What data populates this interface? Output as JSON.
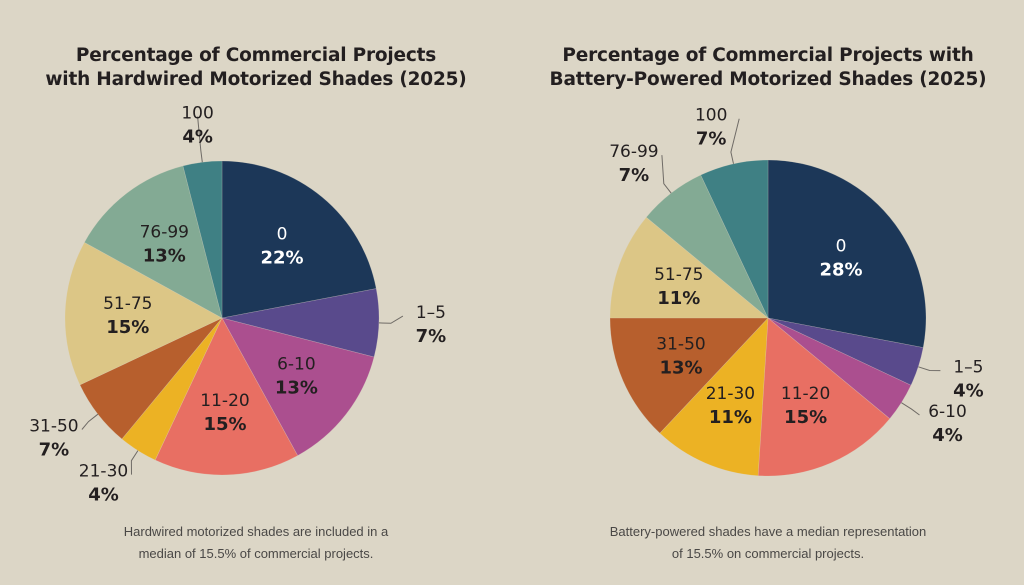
{
  "chart_data": [
    {
      "type": "pie",
      "title": "Percentage of Commercial Projects with Hardwired Motorized Shades (2025)",
      "title_lines": [
        "Percentage of Commercial Projects",
        "with Hardwired Motorized Shades (2025)"
      ],
      "note_lines": [
        "Hardwired motorized shades are included in a",
        "median of 15.5% of commercial projects."
      ],
      "start": "12 o'clock, clockwise",
      "slices": [
        {
          "label": "0",
          "value": 22,
          "display": "22%",
          "color": "#1c3758",
          "text_color": "#ffffff",
          "label_position": "inside"
        },
        {
          "label": "1–5",
          "value": 7,
          "display": "7%",
          "color": "#594a8c",
          "text_color": "#231f20",
          "label_position": "outside"
        },
        {
          "label": "6-10",
          "value": 13,
          "display": "13%",
          "color": "#ab4f8f",
          "text_color": "#231f20",
          "label_position": "inside"
        },
        {
          "label": "11-20",
          "value": 15,
          "display": "15%",
          "color": "#e86f63",
          "text_color": "#231f20",
          "label_position": "inside"
        },
        {
          "label": "21-30",
          "value": 4,
          "display": "4%",
          "color": "#ecb224",
          "text_color": "#231f20",
          "label_position": "outside"
        },
        {
          "label": "31-50",
          "value": 7,
          "display": "7%",
          "color": "#b75f2d",
          "text_color": "#231f20",
          "label_position": "outside"
        },
        {
          "label": "51-75",
          "value": 15,
          "display": "15%",
          "color": "#dcc686",
          "text_color": "#231f20",
          "label_position": "inside"
        },
        {
          "label": "76-99",
          "value": 13,
          "display": "13%",
          "color": "#83aa94",
          "text_color": "#231f20",
          "label_position": "inside"
        },
        {
          "label": "100",
          "value": 4,
          "display": "4%",
          "color": "#3f8084",
          "text_color": "#231f20",
          "label_position": "outside"
        }
      ]
    },
    {
      "type": "pie",
      "title": "Percentage of Commercial Projects with Battery-Powered Motorized Shades (2025)",
      "title_lines": [
        "Percentage of Commercial Projects with",
        "Battery-Powered Motorized Shades (2025)"
      ],
      "note_lines": [
        "Battery-powered shades have a median representation",
        "of 15.5% on commercial projects."
      ],
      "start": "12 o'clock, clockwise",
      "slices": [
        {
          "label": "0",
          "value": 28,
          "display": "28%",
          "color": "#1c3758",
          "text_color": "#ffffff",
          "label_position": "inside"
        },
        {
          "label": "1–5",
          "value": 4,
          "display": "4%",
          "color": "#594a8c",
          "text_color": "#231f20",
          "label_position": "outside"
        },
        {
          "label": "6-10",
          "value": 4,
          "display": "4%",
          "color": "#ab4f8f",
          "text_color": "#231f20",
          "label_position": "outside"
        },
        {
          "label": "11-20",
          "value": 15,
          "display": "15%",
          "color": "#e86f63",
          "text_color": "#231f20",
          "label_position": "inside"
        },
        {
          "label": "21-30",
          "value": 11,
          "display": "11%",
          "color": "#ecb224",
          "text_color": "#231f20",
          "label_position": "inside"
        },
        {
          "label": "31-50",
          "value": 13,
          "display": "13%",
          "color": "#b75f2d",
          "text_color": "#231f20",
          "label_position": "inside"
        },
        {
          "label": "51-75",
          "value": 11,
          "display": "11%",
          "color": "#dcc686",
          "text_color": "#231f20",
          "label_position": "inside"
        },
        {
          "label": "76-99",
          "value": 7,
          "display": "7%",
          "color": "#83aa94",
          "text_color": "#231f20",
          "label_position": "outside"
        },
        {
          "label": "100",
          "value": 7,
          "display": "7%",
          "color": "#3f8084",
          "text_color": "#231f20",
          "label_position": "outside"
        }
      ]
    }
  ]
}
